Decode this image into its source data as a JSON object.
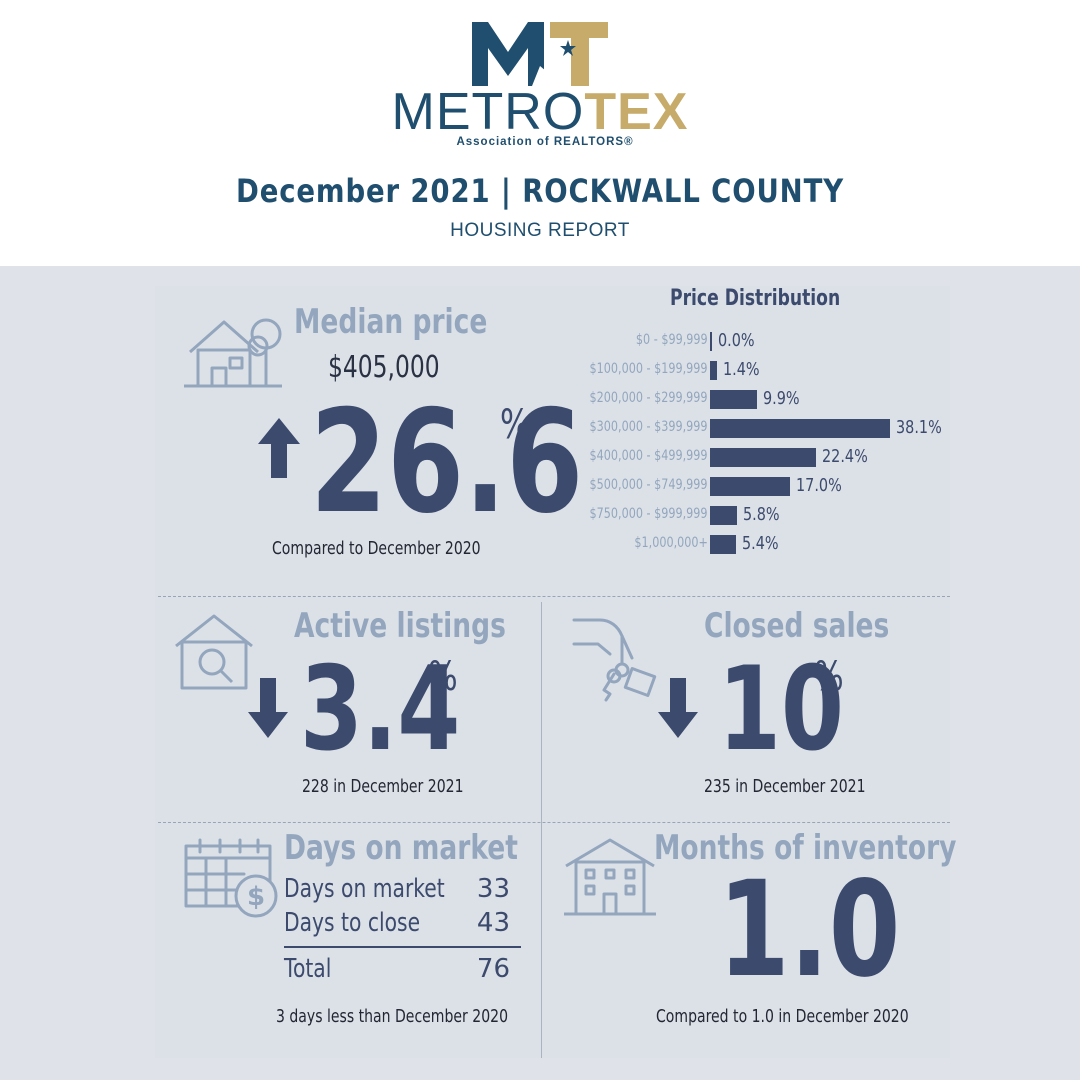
{
  "logo": {
    "mark": "MT",
    "word_part1": "METRO",
    "word_part2": "TEX",
    "subtitle": "Association of REALTORS®",
    "colors": {
      "navy": "#1f4e6e",
      "gold": "#c6ab6a"
    }
  },
  "report": {
    "title": "December 2021 | ROCKWALL COUNTY",
    "subtitle": "HOUSING REPORT"
  },
  "median_price": {
    "label": "Median price",
    "value": "$405,000",
    "change_value": "26.6",
    "change_unit": "%",
    "direction": "up",
    "caption": "Compared to December 2020",
    "icon": "house-tree-icon"
  },
  "price_distribution": {
    "title": "Price Distribution",
    "chart_data": {
      "type": "bar",
      "orientation": "horizontal",
      "title": "Price Distribution",
      "categories": [
        "$0 - $99,999",
        "$100,000 - $199,999",
        "$200,000 - $299,999",
        "$300,000 - $399,999",
        "$400,000 - $499,999",
        "$500,000 - $749,999",
        "$750,000 - $999,999",
        "$1,000,000+"
      ],
      "values": [
        0.0,
        1.4,
        9.9,
        38.1,
        22.4,
        17.0,
        5.8,
        5.4
      ],
      "value_labels": [
        "0.0%",
        "1.4%",
        "9.9%",
        "38.1%",
        "22.4%",
        "17.0%",
        "5.8%",
        "5.4%"
      ],
      "bar_color": "#3c4a6d",
      "grid": false
    }
  },
  "active_listings": {
    "label": "Active listings",
    "change_value": "3.4",
    "change_unit": "%",
    "direction": "down",
    "caption": "228 in December 2021",
    "icon": "house-magnifier-icon"
  },
  "closed_sales": {
    "label": "Closed sales",
    "change_value": "10",
    "change_unit": "%",
    "direction": "down",
    "caption": "235 in December 2021",
    "icon": "hand-keys-icon"
  },
  "days_on_market": {
    "label": "Days on market",
    "rows": [
      {
        "label": "Days on market",
        "value": "33"
      },
      {
        "label": "Days to close",
        "value": "43"
      }
    ],
    "total": {
      "label": "Total",
      "value": "76"
    },
    "caption": "3 days less than December 2020",
    "icon": "calendar-dollar-icon"
  },
  "months_inventory": {
    "label": "Months of inventory",
    "value": "1.0",
    "caption": "Compared to 1.0 in December 2020",
    "icon": "apartment-building-icon"
  }
}
